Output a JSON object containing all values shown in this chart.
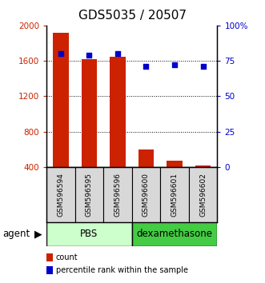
{
  "title": "GDS5035 / 20507",
  "samples": [
    "GSM596594",
    "GSM596595",
    "GSM596596",
    "GSM596600",
    "GSM596601",
    "GSM596602"
  ],
  "counts": [
    1920,
    1620,
    1650,
    600,
    470,
    420
  ],
  "percentiles": [
    80,
    79,
    80,
    71,
    72,
    71
  ],
  "ylim_left": [
    400,
    2000
  ],
  "ylim_right": [
    0,
    100
  ],
  "yticks_left": [
    400,
    800,
    1200,
    1600,
    2000
  ],
  "yticks_right": [
    0,
    25,
    50,
    75,
    100
  ],
  "yticklabels_right": [
    "0",
    "25",
    "50",
    "75",
    "100%"
  ],
  "bar_color": "#cc2200",
  "dot_color": "#0000cc",
  "bar_bottom": 400,
  "pbs_color": "#ccffcc",
  "dex_color": "#44cc44",
  "bg_color": "#d8d8d8",
  "agent_label": "agent",
  "legend_count_label": "count",
  "legend_percentile_label": "percentile rank within the sample",
  "title_fontsize": 11,
  "axis_label_color_left": "#cc2200",
  "axis_label_color_right": "#0000cc",
  "tick_fontsize": 7.5,
  "sample_fontsize": 6.5,
  "agent_fontsize": 8.5,
  "legend_fontsize": 7
}
